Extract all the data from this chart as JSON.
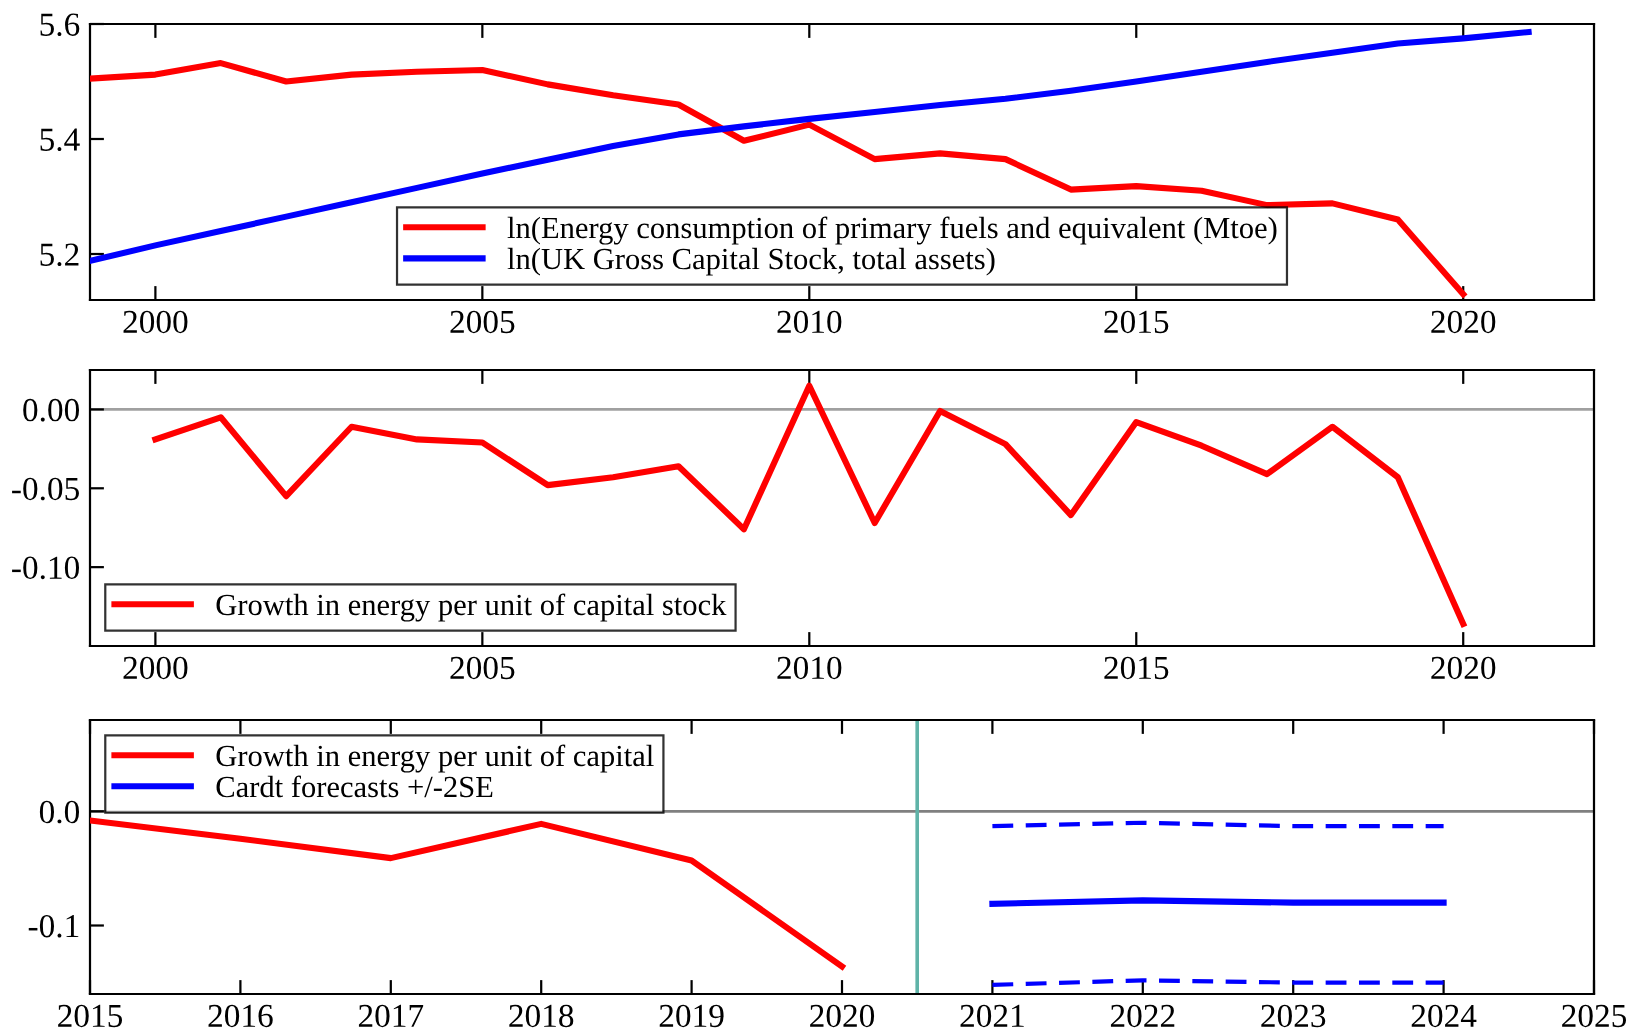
{
  "chart_data": [
    {
      "type": "line",
      "x": [
        1999,
        2000,
        2001,
        2002,
        2003,
        2004,
        2005,
        2006,
        2007,
        2008,
        2009,
        2010,
        2011,
        2012,
        2013,
        2014,
        2015,
        2016,
        2017,
        2018,
        2019,
        2020,
        2021
      ],
      "series": [
        {
          "name": "ln(Energy consumption of primary fuels and equivalent (Mtoe)",
          "color": "#ff0000",
          "values": [
            5.505,
            5.512,
            5.532,
            5.5,
            5.512,
            5.517,
            5.52,
            5.495,
            5.476,
            5.46,
            5.397,
            5.425,
            5.365,
            5.375,
            5.365,
            5.312,
            5.318,
            5.31,
            5.285,
            5.288,
            5.26,
            5.13,
            null
          ]
        },
        {
          "name": "ln(UK Gross Capital Stock, total assets)",
          "color": "#0000ff",
          "values": [
            5.188,
            5.215,
            5.24,
            5.265,
            5.29,
            5.315,
            5.34,
            5.364,
            5.388,
            5.408,
            5.422,
            5.435,
            5.447,
            5.459,
            5.47,
            5.484,
            5.5,
            5.517,
            5.534,
            5.55,
            5.566,
            5.575,
            5.586
          ]
        }
      ],
      "xlim": [
        1999,
        2022
      ],
      "xticks": [
        2000,
        2005,
        2010,
        2015,
        2020
      ],
      "ylim": [
        5.12,
        5.6
      ],
      "yticks": [
        5.2,
        5.4,
        5.6
      ],
      "legend": "bottom",
      "grid": false
    },
    {
      "type": "line",
      "x": [
        2000,
        2001,
        2002,
        2003,
        2004,
        2005,
        2006,
        2007,
        2008,
        2009,
        2010,
        2011,
        2012,
        2013,
        2014,
        2015,
        2016,
        2017,
        2018,
        2019,
        2020
      ],
      "series": [
        {
          "name": "Growth in energy per unit of capital stock",
          "color": "#ff0000",
          "values": [
            -0.019,
            -0.005,
            -0.055,
            -0.011,
            -0.019,
            -0.021,
            -0.048,
            -0.043,
            -0.036,
            -0.076,
            0.015,
            -0.072,
            -0.001,
            -0.022,
            -0.067,
            -0.008,
            -0.023,
            -0.041,
            -0.011,
            -0.043,
            -0.136
          ]
        }
      ],
      "xlim": [
        1999,
        2022
      ],
      "xticks": [
        2000,
        2005,
        2010,
        2015,
        2020
      ],
      "ylim": [
        -0.15,
        0.025
      ],
      "yticks": [
        {
          "value": -0.1,
          "label": "-0.10"
        },
        {
          "value": -0.05,
          "label": "-0.05"
        },
        {
          "value": 0,
          "label": "0.00"
        }
      ],
      "ref_lines": [
        {
          "axis": "y",
          "value": 0,
          "color": "#a0a0a0"
        }
      ],
      "legend": "bottom left",
      "grid": false
    },
    {
      "type": "line",
      "series": [
        {
          "name": "Growth in energy per unit of capital",
          "color": "#ff0000",
          "x": [
            2015,
            2016,
            2017,
            2018,
            2019,
            2020
          ],
          "values": [
            -0.008,
            -0.024,
            -0.041,
            -0.011,
            -0.043,
            -0.136
          ]
        },
        {
          "name": "Cardt forecasts +/-2SE",
          "color": "#0000ff",
          "x": [
            2021,
            2022,
            2023,
            2024
          ],
          "values": [
            -0.081,
            -0.078,
            -0.08,
            -0.08
          ]
        },
        {
          "color": "#0000ff",
          "x": [
            2021,
            2022,
            2023,
            2024
          ],
          "values": [
            -0.013,
            -0.01,
            -0.013,
            -0.013
          ],
          "line_style": "dashed"
        },
        {
          "color": "#0000ff",
          "x": [
            2021,
            2022,
            2023,
            2024
          ],
          "values": [
            -0.152,
            -0.148,
            -0.15,
            -0.15
          ],
          "line_style": "dashed"
        }
      ],
      "xlim": [
        2015,
        2025
      ],
      "xticks": [
        2015,
        2016,
        2017,
        2018,
        2019,
        2020,
        2021,
        2022,
        2023,
        2024,
        2025
      ],
      "ylim": [
        -0.16,
        0.08
      ],
      "yticks": [
        {
          "value": -0.1,
          "label": "-0.1"
        },
        {
          "value": 0,
          "label": "0.0"
        }
      ],
      "ref_lines": [
        {
          "axis": "y",
          "value": 0,
          "color": "#808080"
        },
        {
          "axis": "x",
          "value": 2020.5,
          "color": "#5fb3a8"
        }
      ],
      "legend": "top left",
      "grid": false
    }
  ]
}
